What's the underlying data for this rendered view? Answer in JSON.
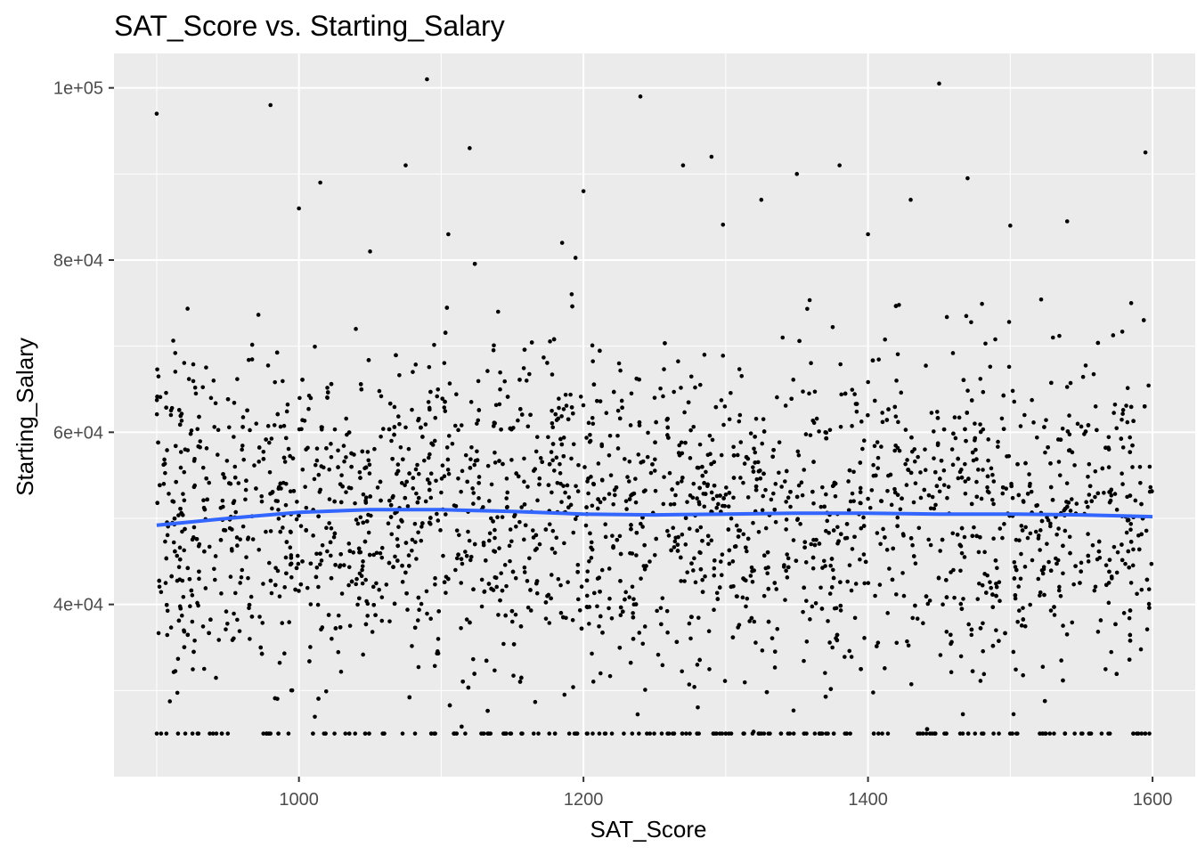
{
  "chart_data": {
    "type": "scatter",
    "title": "SAT_Score vs. Starting_Salary",
    "xlabel": "SAT_Score",
    "ylabel": "Starting_Salary",
    "xlim": [
      870,
      1630
    ],
    "ylim": [
      20000,
      104000
    ],
    "x_ticks": [
      1000,
      1200,
      1400,
      1600
    ],
    "x_tick_labels": [
      "1000",
      "1200",
      "1400",
      "1600"
    ],
    "y_ticks": [
      40000,
      60000,
      80000,
      100000
    ],
    "y_tick_labels": [
      "4e+04",
      "6e+04",
      "8e+04",
      "1e+05"
    ],
    "grid": true,
    "panel_background": "#ebebeb",
    "grid_color": "#ffffff",
    "point_color": "#000000",
    "smooth_color": "#3366ff",
    "series": [
      {
        "name": "",
        "kind": "points",
        "x": [
          900,
          905,
          910,
          915,
          920,
          925,
          930,
          940,
          950,
          955,
          960,
          970,
          975,
          980,
          985,
          990,
          1000,
          1005,
          1010,
          1015,
          1020,
          1025,
          1030,
          1040,
          1045,
          1050,
          1060,
          1065,
          1070,
          1075,
          1080,
          1090,
          1095,
          1100,
          1105,
          1110,
          1120,
          1125,
          1130,
          1135,
          1140,
          1150,
          1160,
          1165,
          1170,
          1180,
          1185,
          1190,
          1200,
          1205,
          1210,
          1220,
          1225,
          1230,
          1235,
          1240,
          1250,
          1255,
          1260,
          1270,
          1275,
          1280,
          1285,
          1290,
          1300,
          1305,
          1310,
          1320,
          1325,
          1330,
          1335,
          1340,
          1350,
          1355,
          1360,
          1370,
          1375,
          1380,
          1385,
          1390,
          1400,
          1405,
          1410,
          1420,
          1425,
          1430,
          1435,
          1440,
          1450,
          1455,
          1460,
          1470,
          1475,
          1480,
          1485,
          1490,
          1500,
          1505,
          1510,
          1520,
          1525,
          1530,
          1535,
          1540,
          1550,
          1555,
          1560,
          1570,
          1575,
          1580,
          1585,
          1590,
          1595,
          1598
        ],
        "y": [
          97000,
          54000,
          62000,
          25000,
          58000,
          38000,
          47000,
          66000,
          25000,
          56000,
          44000,
          61000,
          25000,
          98000,
          52000,
          42000,
          86000,
          58000,
          48000,
          89000,
          64000,
          25000,
          55000,
          72000,
          45000,
          81000,
          25000,
          59000,
          49000,
          91000,
          67000,
          101000,
          25000,
          53000,
          83000,
          44000,
          93000,
          61000,
          25000,
          50000,
          74000,
          38000,
          66000,
          25000,
          57000,
          46000,
          82000,
          25000,
          88000,
          59000,
          43000,
          25000,
          68000,
          52000,
          36000,
          99000,
          64000,
          25000,
          48000,
          91000,
          57000,
          33000,
          69000,
          92000,
          25000,
          45000,
          62000,
          38000,
          87000,
          25000,
          54000,
          71000,
          90000,
          25000,
          47000,
          60000,
          35000,
          91000,
          25000,
          52000,
          83000,
          41000,
          25000,
          66000,
          48000,
          87000,
          25000,
          58000,
          100500,
          25000,
          44000,
          89500,
          61000,
          25000,
          53000,
          37000,
          84000,
          25000,
          62000,
          48000,
          25000,
          71000,
          55000,
          84500,
          25000,
          45000,
          63000,
          25000,
          51000,
          39000,
          75000,
          25000,
          92500,
          56000
        ],
        "note_is_sample": false
      },
      {
        "name": "",
        "kind": "smooth",
        "x": [
          900,
          950,
          1000,
          1050,
          1100,
          1150,
          1200,
          1250,
          1300,
          1350,
          1400,
          1450,
          1500,
          1550,
          1600
        ],
        "y": [
          49200,
          50000,
          50700,
          51000,
          51000,
          50800,
          50500,
          50400,
          50500,
          50600,
          50600,
          50500,
          50500,
          50400,
          50200
        ]
      }
    ]
  }
}
